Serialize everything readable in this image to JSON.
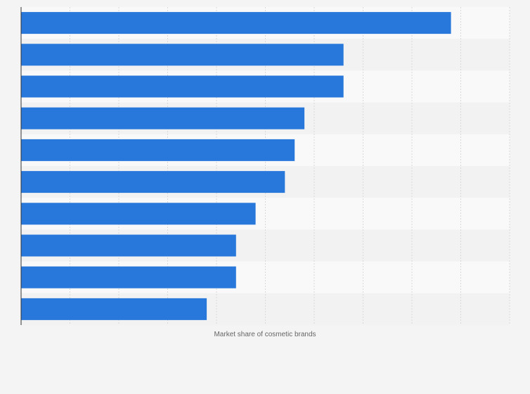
{
  "chart_data": {
    "type": "bar",
    "orientation": "horizontal",
    "xlabel": "Market share of cosmetic brands",
    "ylabel": "",
    "xlim": [
      0,
      10
    ],
    "grid": true,
    "gridlines": 10,
    "values": [
      8.8,
      6.6,
      6.6,
      5.8,
      5.6,
      5.4,
      4.8,
      4.4,
      4.4,
      3.8
    ]
  },
  "colors": {
    "bar": "#2878dc",
    "background": "#f4f4f4",
    "band_light": "#f9f9f9",
    "band_dark": "#f2f2f2",
    "grid": "#d9d9d9",
    "axis": "#333333"
  }
}
